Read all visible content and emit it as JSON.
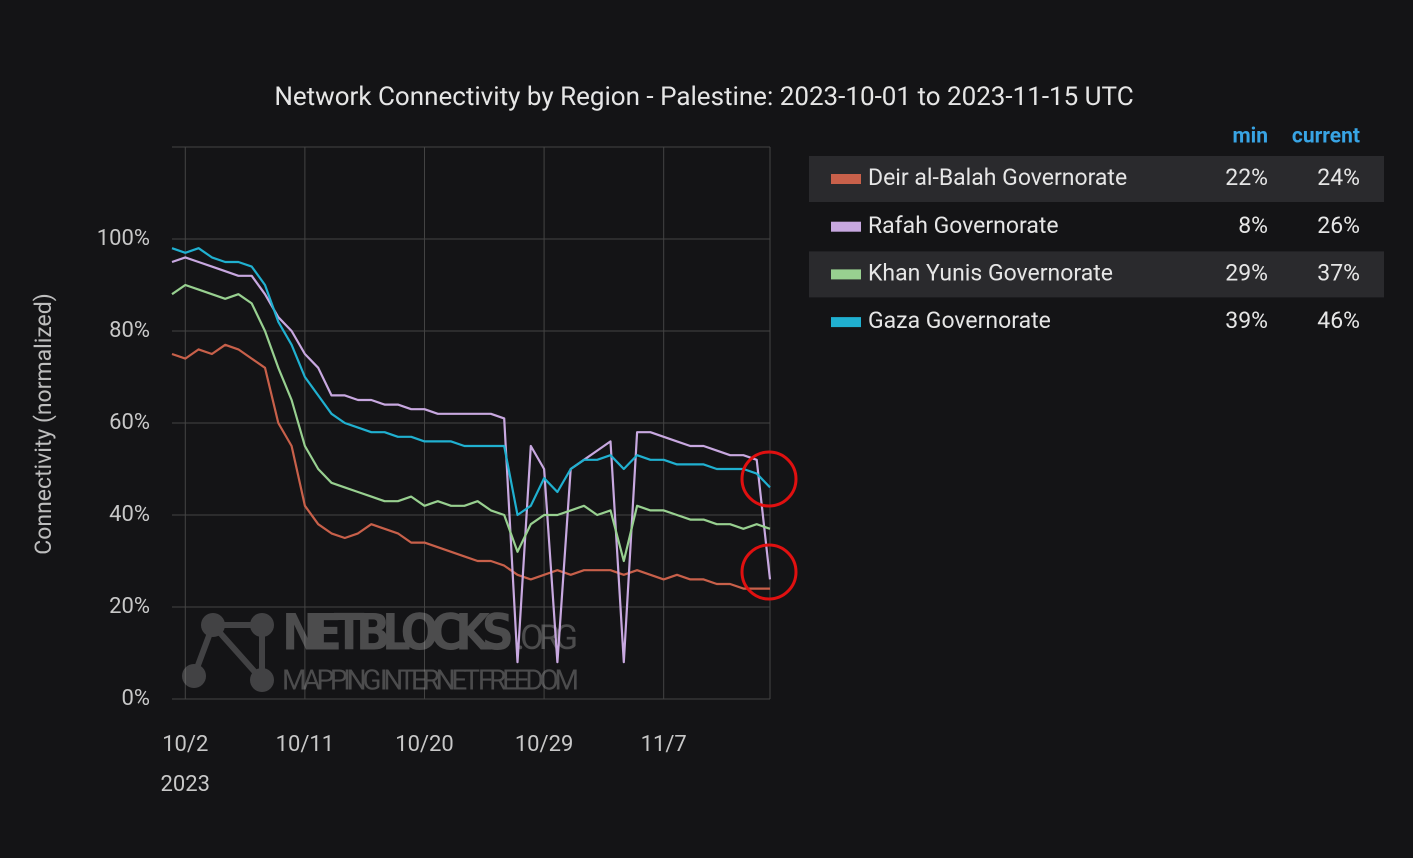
{
  "chart_data": {
    "type": "line",
    "title": "Network Connectivity by Region - Palestine: 2023-10-01 to 2023-11-15 UTC",
    "y_label": "Connectivity (normalized)",
    "x": [
      "2023-10-01",
      "2023-10-02",
      "2023-10-03",
      "2023-10-04",
      "2023-10-05",
      "2023-10-06",
      "2023-10-07",
      "2023-10-08",
      "2023-10-09",
      "2023-10-10",
      "2023-10-11",
      "2023-10-12",
      "2023-10-13",
      "2023-10-14",
      "2023-10-15",
      "2023-10-16",
      "2023-10-17",
      "2023-10-18",
      "2023-10-19",
      "2023-10-20",
      "2023-10-21",
      "2023-10-22",
      "2023-10-23",
      "2023-10-24",
      "2023-10-25",
      "2023-10-26",
      "2023-10-27",
      "2023-10-28",
      "2023-10-29",
      "2023-10-30",
      "2023-10-31",
      "2023-11-01",
      "2023-11-02",
      "2023-11-03",
      "2023-11-04",
      "2023-11-05",
      "2023-11-06",
      "2023-11-07",
      "2023-11-08",
      "2023-11-09",
      "2023-11-10",
      "2023-11-11",
      "2023-11-12",
      "2023-11-13",
      "2023-11-14",
      "2023-11-15"
    ],
    "xlim": [
      "2023-10-01",
      "2023-11-15"
    ],
    "xticks": [
      {
        "value": "2023-10-02",
        "label": "10/2"
      },
      {
        "value": "2023-10-11",
        "label": "10/11"
      },
      {
        "value": "2023-10-20",
        "label": "10/20"
      },
      {
        "value": "2023-10-29",
        "label": "10/29"
      },
      {
        "value": "2023-11-07",
        "label": "11/7"
      }
    ],
    "x_year_label": "2023",
    "ylim": [
      0,
      120
    ],
    "yticks": [
      {
        "value": 0,
        "label": "0%"
      },
      {
        "value": 20,
        "label": "20%"
      },
      {
        "value": 40,
        "label": "40%"
      },
      {
        "value": 60,
        "label": "60%"
      },
      {
        "value": 80,
        "label": "80%"
      },
      {
        "value": 100,
        "label": "100%"
      }
    ],
    "grid": true,
    "legend_headers": {
      "min": "min",
      "current": "current"
    },
    "series": [
      {
        "name": "Deir al-Balah Governorate",
        "color": "#c8604a",
        "min": {
          "value": 22,
          "label": "22%"
        },
        "current": {
          "value": 24,
          "label": "24%"
        },
        "values": [
          75,
          74,
          76,
          75,
          77,
          76,
          74,
          72,
          60,
          55,
          42,
          38,
          36,
          35,
          36,
          38,
          37,
          36,
          34,
          34,
          33,
          32,
          31,
          30,
          30,
          29,
          27,
          26,
          27,
          28,
          27,
          28,
          28,
          28,
          27,
          28,
          27,
          26,
          27,
          26,
          26,
          25,
          25,
          24,
          24,
          24
        ]
      },
      {
        "name": "Rafah Governorate",
        "color": "#c8a8e0",
        "min": {
          "value": 8,
          "label": "8%"
        },
        "current": {
          "value": 26,
          "label": "26%"
        },
        "values": [
          95,
          96,
          95,
          94,
          93,
          92,
          92,
          88,
          83,
          80,
          75,
          72,
          66,
          66,
          65,
          65,
          64,
          64,
          63,
          63,
          62,
          62,
          62,
          62,
          62,
          61,
          8,
          55,
          50,
          8,
          50,
          52,
          54,
          56,
          8,
          58,
          58,
          57,
          56,
          55,
          55,
          54,
          53,
          53,
          52,
          26
        ]
      },
      {
        "name": "Khan Yunis Governorate",
        "color": "#98d090",
        "min": {
          "value": 29,
          "label": "29%"
        },
        "current": {
          "value": 37,
          "label": "37%"
        },
        "values": [
          88,
          90,
          89,
          88,
          87,
          88,
          86,
          80,
          72,
          65,
          55,
          50,
          47,
          46,
          45,
          44,
          43,
          43,
          44,
          42,
          43,
          42,
          42,
          43,
          41,
          40,
          32,
          38,
          40,
          40,
          41,
          42,
          40,
          41,
          30,
          42,
          41,
          41,
          40,
          39,
          39,
          38,
          38,
          37,
          38,
          37
        ]
      },
      {
        "name": "Gaza Governorate",
        "color": "#20b0d0",
        "min": {
          "value": 39,
          "label": "39%"
        },
        "current": {
          "value": 46,
          "label": "46%"
        },
        "values": [
          98,
          97,
          98,
          96,
          95,
          95,
          94,
          90,
          82,
          77,
          70,
          66,
          62,
          60,
          59,
          58,
          58,
          57,
          57,
          56,
          56,
          56,
          55,
          55,
          55,
          55,
          40,
          42,
          48,
          45,
          50,
          52,
          52,
          53,
          50,
          53,
          52,
          52,
          51,
          51,
          51,
          50,
          50,
          50,
          49,
          46
        ]
      }
    ],
    "watermark": {
      "name": "NETBLOCKS",
      "suffix": ".ORG",
      "tagline": "MAPPING INTERNET FREEDOM"
    }
  }
}
